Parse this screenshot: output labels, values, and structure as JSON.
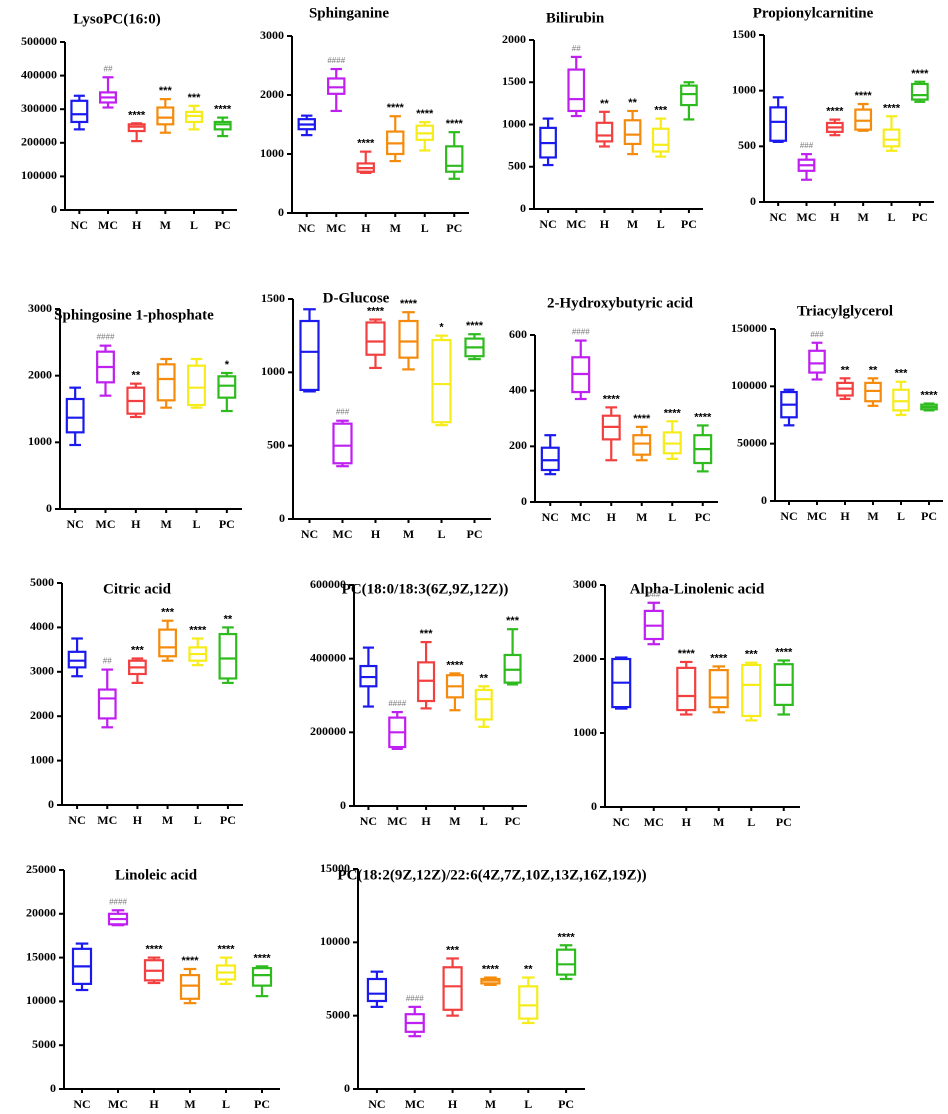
{
  "figure": {
    "groups": [
      "NC",
      "MC",
      "H",
      "M",
      "L",
      "PC"
    ]
  },
  "colors": {
    "NC": "#1a1aee",
    "MC": "#bf1ff0",
    "H": "#f24040",
    "M": "#f58b0c",
    "L": "#f5ec1a",
    "PC": "#2dbb1e",
    "axis": "#000000",
    "hash": "#777777"
  },
  "chart_data": [
    {
      "type": "box",
      "title": "LysoPC(16:0)",
      "ylim": [
        0,
        500000
      ],
      "yticks": [
        "0",
        "100000",
        "200000",
        "300000",
        "400000",
        "500000"
      ],
      "categories": [
        "NC",
        "MC",
        "H",
        "M",
        "L",
        "PC"
      ],
      "boxes": [
        {
          "min": 240000,
          "q1": 262000,
          "med": 285000,
          "q3": 325000,
          "max": 340000
        },
        {
          "min": 305000,
          "q1": 320000,
          "med": 335000,
          "q3": 350000,
          "max": 395000
        },
        {
          "min": 205000,
          "q1": 235000,
          "med": 248000,
          "q3": 255000,
          "max": 258000
        },
        {
          "min": 230000,
          "q1": 255000,
          "med": 275000,
          "q3": 305000,
          "max": 330000
        },
        {
          "min": 240000,
          "q1": 262000,
          "med": 280000,
          "q3": 292000,
          "max": 310000
        },
        {
          "min": 220000,
          "q1": 240000,
          "med": 255000,
          "q3": 262000,
          "max": 275000
        }
      ],
      "annotations": [
        "",
        "##",
        "****",
        "***",
        "***",
        "****"
      ]
    },
    {
      "type": "box",
      "title": "Sphinganine",
      "ylim": [
        0,
        3000
      ],
      "yticks": [
        "0",
        "1000",
        "2000",
        "3000"
      ],
      "categories": [
        "NC",
        "MC",
        "H",
        "M",
        "L",
        "PC"
      ],
      "boxes": [
        {
          "min": 1320,
          "q1": 1420,
          "med": 1500,
          "q3": 1590,
          "max": 1650
        },
        {
          "min": 1730,
          "q1": 2020,
          "med": 2130,
          "q3": 2280,
          "max": 2440
        },
        {
          "min": 680,
          "q1": 700,
          "med": 760,
          "q3": 840,
          "max": 1040
        },
        {
          "min": 880,
          "q1": 1000,
          "med": 1180,
          "q3": 1380,
          "max": 1640
        },
        {
          "min": 1060,
          "q1": 1240,
          "med": 1350,
          "q3": 1480,
          "max": 1540
        },
        {
          "min": 580,
          "q1": 700,
          "med": 800,
          "q3": 1130,
          "max": 1370
        }
      ],
      "annotations": [
        "",
        "####",
        "****",
        "****",
        "****",
        "****"
      ]
    },
    {
      "type": "box",
      "title": "Bilirubin",
      "ylim": [
        0,
        2000
      ],
      "yticks": [
        "0",
        "500",
        "1000",
        "1500",
        "2000"
      ],
      "categories": [
        "NC",
        "MC",
        "H",
        "M",
        "L",
        "PC"
      ],
      "boxes": [
        {
          "min": 520,
          "q1": 610,
          "med": 780,
          "q3": 960,
          "max": 1070
        },
        {
          "min": 1100,
          "q1": 1160,
          "med": 1300,
          "q3": 1650,
          "max": 1800
        },
        {
          "min": 740,
          "q1": 800,
          "med": 870,
          "q3": 1020,
          "max": 1150
        },
        {
          "min": 650,
          "q1": 770,
          "med": 880,
          "q3": 1050,
          "max": 1160
        },
        {
          "min": 620,
          "q1": 680,
          "med": 760,
          "q3": 950,
          "max": 1070
        },
        {
          "min": 1060,
          "q1": 1230,
          "med": 1360,
          "q3": 1460,
          "max": 1500
        }
      ],
      "annotations": [
        "",
        "##",
        "**",
        "**",
        "***",
        ""
      ]
    },
    {
      "type": "box",
      "title": "Propionylcarnitine",
      "ylim": [
        0,
        1500
      ],
      "yticks": [
        "0",
        "500",
        "1000",
        "1500"
      ],
      "categories": [
        "NC",
        "MC",
        "H",
        "M",
        "L",
        "PC"
      ],
      "boxes": [
        {
          "min": 540,
          "q1": 550,
          "med": 720,
          "q3": 850,
          "max": 940
        },
        {
          "min": 200,
          "q1": 280,
          "med": 330,
          "q3": 380,
          "max": 430
        },
        {
          "min": 600,
          "q1": 630,
          "med": 670,
          "q3": 710,
          "max": 740
        },
        {
          "min": 640,
          "q1": 650,
          "med": 730,
          "q3": 830,
          "max": 880
        },
        {
          "min": 460,
          "q1": 500,
          "med": 560,
          "q3": 650,
          "max": 770
        },
        {
          "min": 900,
          "q1": 920,
          "med": 960,
          "q3": 1060,
          "max": 1080
        }
      ],
      "annotations": [
        "",
        "###",
        "****",
        "****",
        "****",
        "****"
      ]
    },
    {
      "type": "box",
      "title": "Sphingosine 1-phosphate",
      "ylim": [
        0,
        3000
      ],
      "yticks": [
        "0",
        "1000",
        "2000",
        "3000"
      ],
      "categories": [
        "NC",
        "MC",
        "H",
        "M",
        "L",
        "PC"
      ],
      "boxes": [
        {
          "min": 960,
          "q1": 1150,
          "med": 1370,
          "q3": 1650,
          "max": 1820
        },
        {
          "min": 1700,
          "q1": 1900,
          "med": 2130,
          "q3": 2360,
          "max": 2450
        },
        {
          "min": 1380,
          "q1": 1430,
          "med": 1620,
          "q3": 1820,
          "max": 1880
        },
        {
          "min": 1520,
          "q1": 1630,
          "med": 1950,
          "q3": 2170,
          "max": 2250
        },
        {
          "min": 1520,
          "q1": 1560,
          "med": 1820,
          "q3": 2150,
          "max": 2250
        },
        {
          "min": 1470,
          "q1": 1670,
          "med": 1850,
          "q3": 1990,
          "max": 2040
        }
      ],
      "annotations": [
        "",
        "####",
        "**",
        "",
        "",
        "*"
      ]
    },
    {
      "type": "box",
      "title": "D-Glucose",
      "ylim": [
        0,
        1500
      ],
      "yticks": [
        "0",
        "500",
        "1000",
        "1500"
      ],
      "categories": [
        "NC",
        "MC",
        "H",
        "M",
        "L",
        "PC"
      ],
      "boxes": [
        {
          "min": 870,
          "q1": 880,
          "med": 1140,
          "q3": 1350,
          "max": 1430
        },
        {
          "min": 360,
          "q1": 380,
          "med": 500,
          "q3": 650,
          "max": 670
        },
        {
          "min": 1030,
          "q1": 1120,
          "med": 1210,
          "q3": 1340,
          "max": 1360
        },
        {
          "min": 1020,
          "q1": 1100,
          "med": 1210,
          "q3": 1350,
          "max": 1410
        },
        {
          "min": 640,
          "q1": 660,
          "med": 920,
          "q3": 1220,
          "max": 1250
        },
        {
          "min": 1090,
          "q1": 1110,
          "med": 1170,
          "q3": 1230,
          "max": 1260
        }
      ],
      "annotations": [
        "",
        "###",
        "****",
        "****",
        "*",
        "****"
      ]
    },
    {
      "type": "box",
      "title": "2-Hydroxybutyric acid",
      "ylim": [
        0,
        600
      ],
      "yticks": [
        "0",
        "200",
        "400",
        "600"
      ],
      "categories": [
        "NC",
        "MC",
        "H",
        "M",
        "L",
        "PC"
      ],
      "boxes": [
        {
          "min": 100,
          "q1": 115,
          "med": 150,
          "q3": 195,
          "max": 240
        },
        {
          "min": 370,
          "q1": 395,
          "med": 460,
          "q3": 520,
          "max": 580
        },
        {
          "min": 150,
          "q1": 225,
          "med": 270,
          "q3": 310,
          "max": 340
        },
        {
          "min": 150,
          "q1": 170,
          "med": 210,
          "q3": 240,
          "max": 270
        },
        {
          "min": 155,
          "q1": 175,
          "med": 210,
          "q3": 250,
          "max": 290
        },
        {
          "min": 110,
          "q1": 140,
          "med": 190,
          "q3": 240,
          "max": 275
        }
      ],
      "annotations": [
        "",
        "####",
        "****",
        "****",
        "****",
        "****"
      ]
    },
    {
      "type": "box",
      "title": "Triacylglycerol",
      "ylim": [
        0,
        150000
      ],
      "yticks": [
        "0",
        "50000",
        "100000",
        "150000"
      ],
      "categories": [
        "NC",
        "MC",
        "H",
        "M",
        "L",
        "PC"
      ],
      "boxes": [
        {
          "min": 66000,
          "q1": 73000,
          "med": 84000,
          "q3": 95000,
          "max": 97000
        },
        {
          "min": 106000,
          "q1": 112000,
          "med": 120000,
          "q3": 131000,
          "max": 138000
        },
        {
          "min": 89000,
          "q1": 92000,
          "med": 98000,
          "q3": 103000,
          "max": 107000
        },
        {
          "min": 83000,
          "q1": 87000,
          "med": 96000,
          "q3": 103000,
          "max": 107000
        },
        {
          "min": 75000,
          "q1": 79000,
          "med": 87000,
          "q3": 97000,
          "max": 104000
        },
        {
          "min": 79000,
          "q1": 80000,
          "med": 82000,
          "q3": 84000,
          "max": 85000
        }
      ],
      "annotations": [
        "",
        "###",
        "**",
        "**",
        "***",
        "****"
      ]
    },
    {
      "type": "box",
      "title": "Citric acid",
      "ylim": [
        0,
        5000
      ],
      "yticks": [
        "0",
        "1000",
        "2000",
        "3000",
        "4000",
        "5000"
      ],
      "categories": [
        "NC",
        "MC",
        "H",
        "M",
        "L",
        "PC"
      ],
      "boxes": [
        {
          "min": 2900,
          "q1": 3100,
          "med": 3250,
          "q3": 3450,
          "max": 3750
        },
        {
          "min": 1750,
          "q1": 1950,
          "med": 2400,
          "q3": 2600,
          "max": 3050
        },
        {
          "min": 2750,
          "q1": 2950,
          "med": 3100,
          "q3": 3250,
          "max": 3300
        },
        {
          "min": 3250,
          "q1": 3350,
          "med": 3550,
          "q3": 3950,
          "max": 4150
        },
        {
          "min": 3150,
          "q1": 3250,
          "med": 3400,
          "q3": 3550,
          "max": 3750
        },
        {
          "min": 2750,
          "q1": 2850,
          "med": 3300,
          "q3": 3850,
          "max": 4000
        }
      ],
      "annotations": [
        "",
        "##",
        "***",
        "***",
        "****",
        "**"
      ]
    },
    {
      "type": "box",
      "title": "PC(18:0/18:3(6Z,9Z,12Z))",
      "ylim": [
        0,
        600000
      ],
      "yticks": [
        "0",
        "200000",
        "400000",
        "600000"
      ],
      "categories": [
        "NC",
        "MC",
        "H",
        "M",
        "L",
        "PC"
      ],
      "boxes": [
        {
          "min": 270000,
          "q1": 325000,
          "med": 350000,
          "q3": 380000,
          "max": 430000
        },
        {
          "min": 155000,
          "q1": 160000,
          "med": 200000,
          "q3": 240000,
          "max": 255000
        },
        {
          "min": 265000,
          "q1": 285000,
          "med": 340000,
          "q3": 390000,
          "max": 445000
        },
        {
          "min": 260000,
          "q1": 295000,
          "med": 325000,
          "q3": 355000,
          "max": 360000
        },
        {
          "min": 215000,
          "q1": 235000,
          "med": 290000,
          "q3": 315000,
          "max": 325000
        },
        {
          "min": 330000,
          "q1": 335000,
          "med": 370000,
          "q3": 410000,
          "max": 480000
        }
      ],
      "annotations": [
        "",
        "####",
        "***",
        "****",
        "**",
        "***"
      ]
    },
    {
      "type": "box",
      "title": "Alpha-Linolenic acid",
      "ylim": [
        0,
        3000
      ],
      "yticks": [
        "0",
        "1000",
        "2000",
        "3000"
      ],
      "categories": [
        "NC",
        "MC",
        "H",
        "M",
        "L",
        "PC"
      ],
      "boxes": [
        {
          "min": 1330,
          "q1": 1350,
          "med": 1680,
          "q3": 2000,
          "max": 2020
        },
        {
          "min": 2200,
          "q1": 2270,
          "med": 2450,
          "q3": 2650,
          "max": 2760
        },
        {
          "min": 1250,
          "q1": 1310,
          "med": 1500,
          "q3": 1880,
          "max": 1960
        },
        {
          "min": 1280,
          "q1": 1350,
          "med": 1480,
          "q3": 1850,
          "max": 1900
        },
        {
          "min": 1170,
          "q1": 1230,
          "med": 1650,
          "q3": 1920,
          "max": 1950
        },
        {
          "min": 1250,
          "q1": 1380,
          "med": 1650,
          "q3": 1930,
          "max": 1980
        }
      ],
      "annotations": [
        "",
        "###",
        "****",
        "****",
        "***",
        "****"
      ]
    },
    {
      "type": "box",
      "title": "Linoleic acid",
      "ylim": [
        0,
        25000
      ],
      "yticks": [
        "0",
        "5000",
        "10000",
        "15000",
        "20000",
        "25000"
      ],
      "categories": [
        "NC",
        "MC",
        "H",
        "M",
        "L",
        "PC"
      ],
      "boxes": [
        {
          "min": 11300,
          "q1": 12000,
          "med": 14000,
          "q3": 16000,
          "max": 16600
        },
        {
          "min": 18700,
          "q1": 18800,
          "med": 19400,
          "q3": 20000,
          "max": 20400
        },
        {
          "min": 12100,
          "q1": 12400,
          "med": 13500,
          "q3": 14700,
          "max": 15000
        },
        {
          "min": 9800,
          "q1": 10300,
          "med": 11800,
          "q3": 13000,
          "max": 13700
        },
        {
          "min": 12000,
          "q1": 12500,
          "med": 13300,
          "q3": 14100,
          "max": 15000
        },
        {
          "min": 10600,
          "q1": 11800,
          "med": 13000,
          "q3": 13800,
          "max": 14000
        }
      ],
      "annotations": [
        "",
        "####",
        "****",
        "****",
        "****",
        "****"
      ]
    },
    {
      "type": "box",
      "title": "PC(18:2(9Z,12Z)/22:6(4Z,7Z,10Z,13Z,16Z,19Z))",
      "ylim": [
        0,
        15000
      ],
      "yticks": [
        "0",
        "5000",
        "10000",
        "15000"
      ],
      "categories": [
        "NC",
        "MC",
        "H",
        "M",
        "L",
        "PC"
      ],
      "boxes": [
        {
          "min": 5600,
          "q1": 6000,
          "med": 6500,
          "q3": 7500,
          "max": 8000
        },
        {
          "min": 3600,
          "q1": 3900,
          "med": 4500,
          "q3": 5100,
          "max": 5600
        },
        {
          "min": 5000,
          "q1": 5400,
          "med": 7000,
          "q3": 8300,
          "max": 8900
        },
        {
          "min": 7100,
          "q1": 7200,
          "med": 7400,
          "q3": 7500,
          "max": 7600
        },
        {
          "min": 4500,
          "q1": 4800,
          "med": 5700,
          "q3": 7000,
          "max": 7600
        },
        {
          "min": 7500,
          "q1": 7800,
          "med": 8500,
          "q3": 9500,
          "max": 9800
        }
      ],
      "annotations": [
        "",
        "####",
        "***",
        "****",
        "**",
        "****"
      ]
    }
  ]
}
